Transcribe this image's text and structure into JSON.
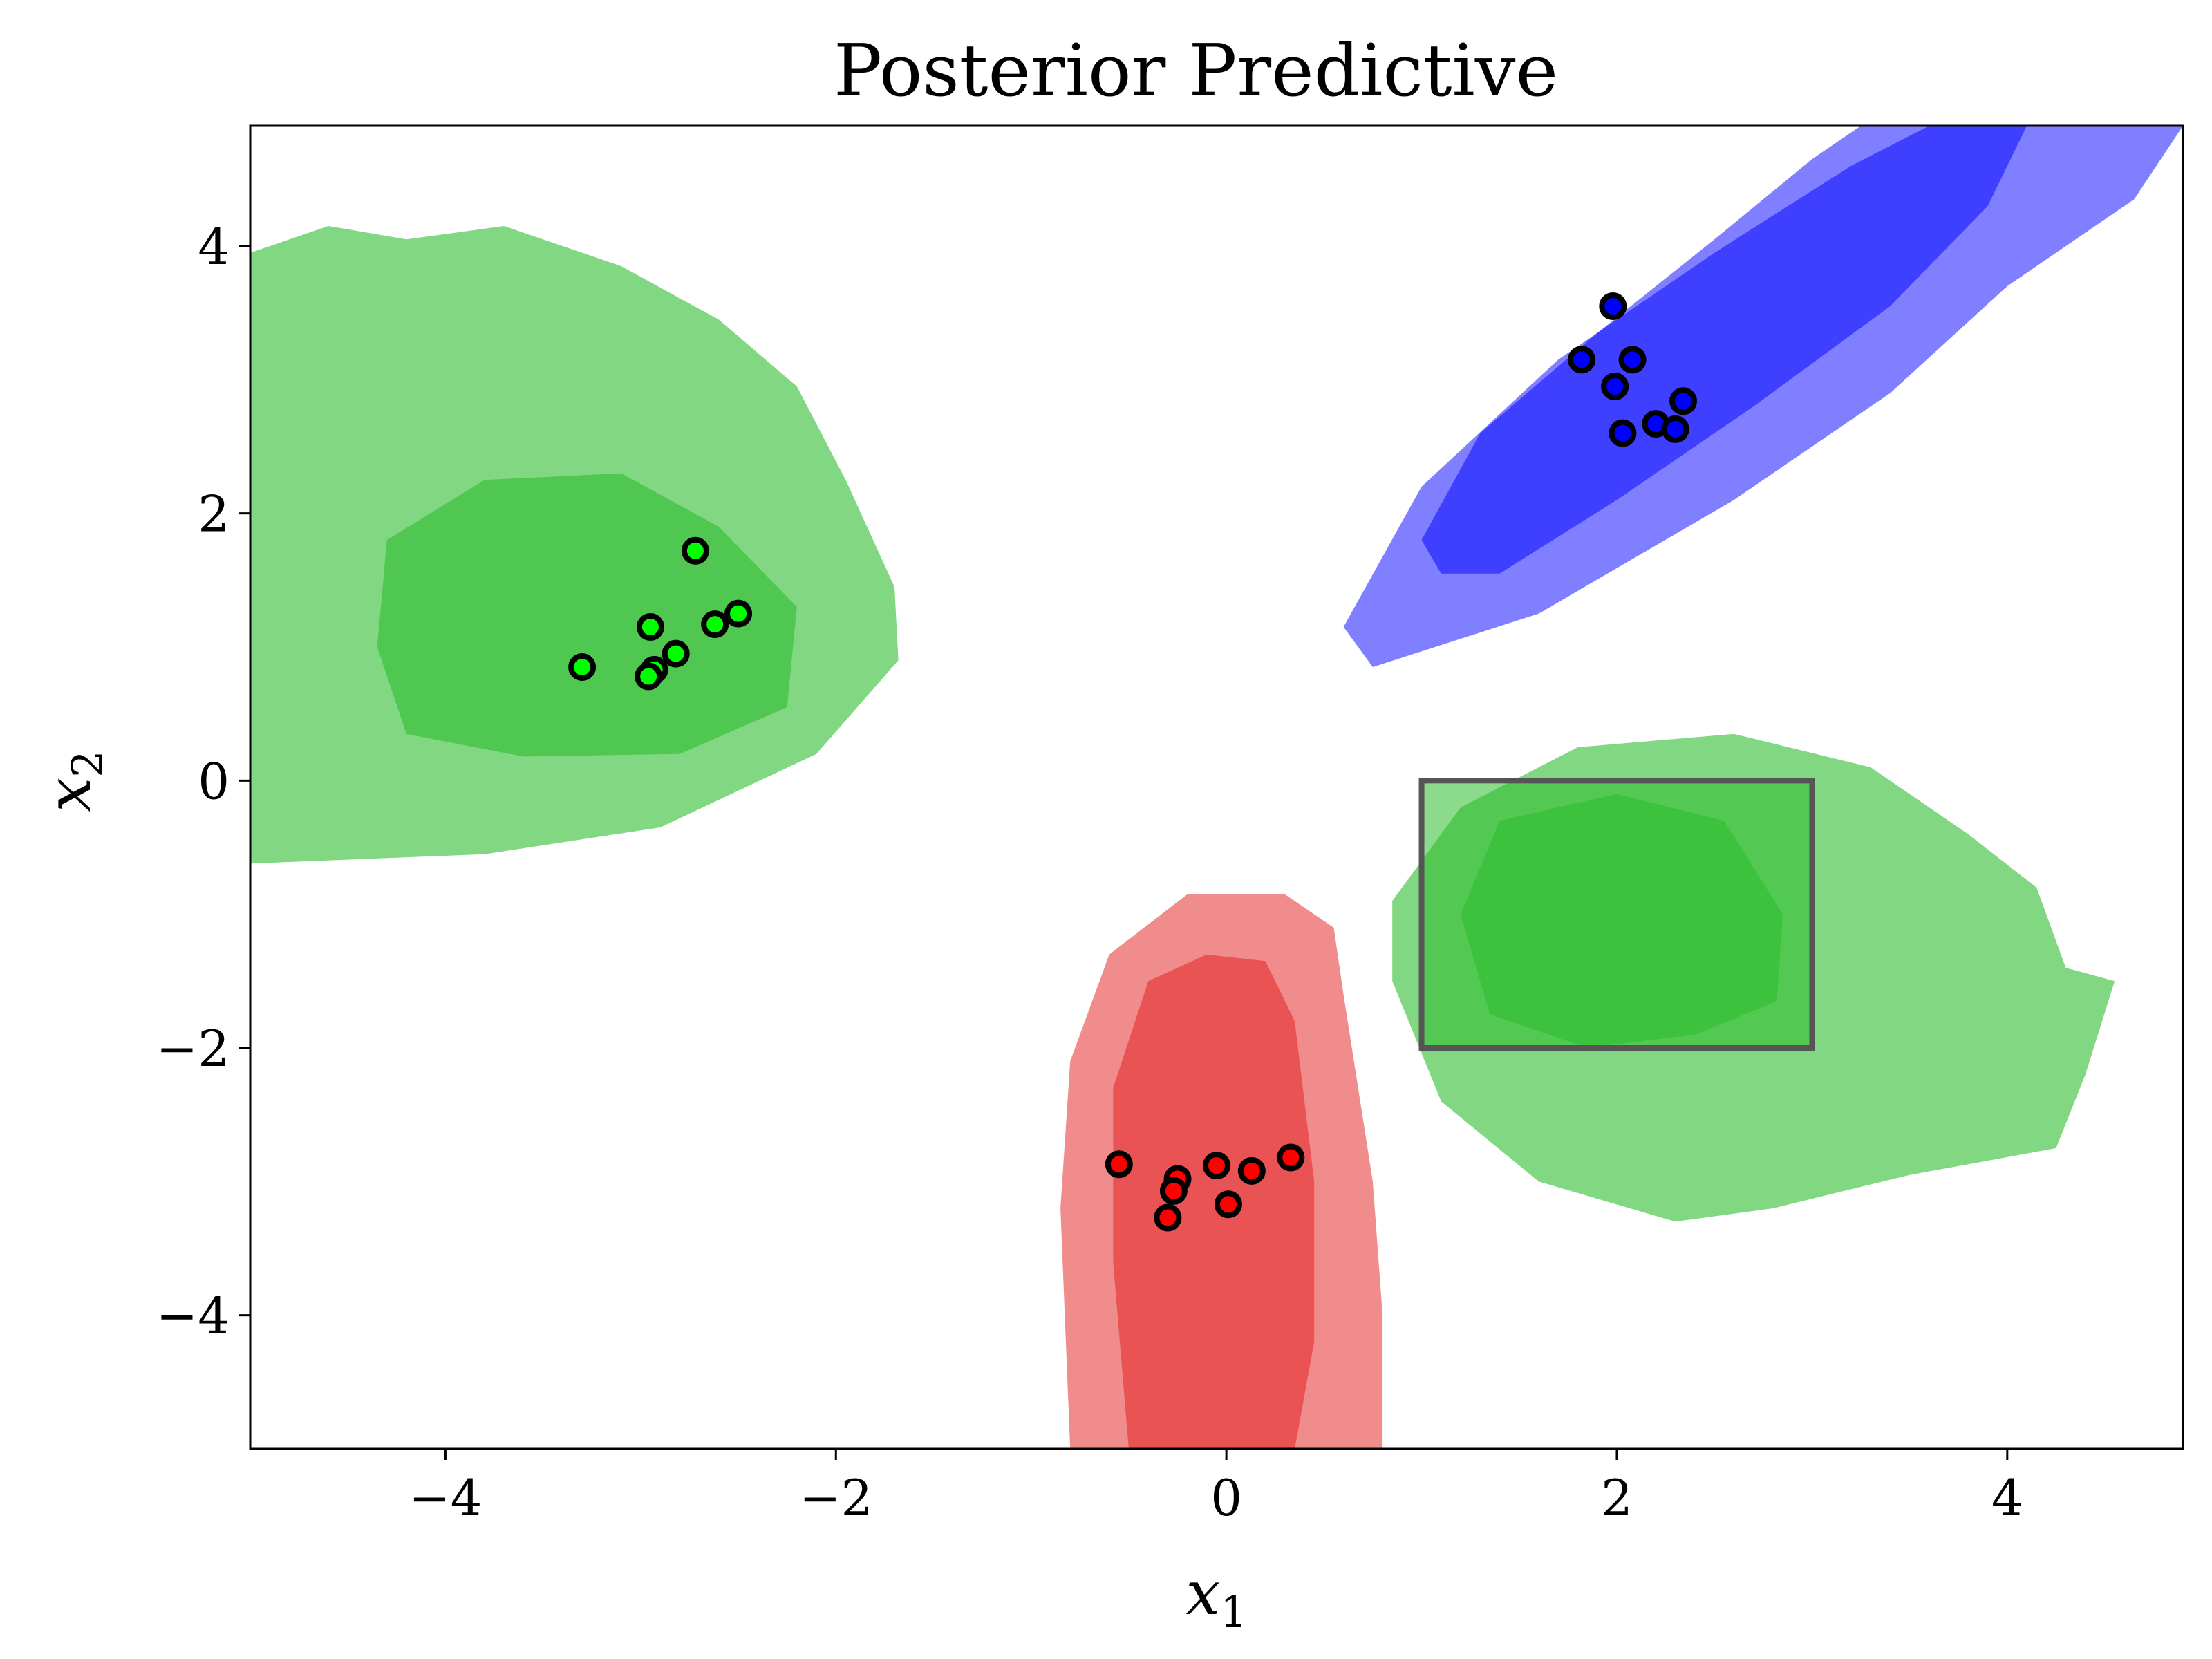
{
  "chart_data": {
    "type": "scatter",
    "title": "Posterior Predictive",
    "xlabel": "x1",
    "ylabel": "x2",
    "xlim": [
      -5,
      4.9
    ],
    "ylim": [
      -5,
      4.9
    ],
    "xticks": [
      -4,
      -2,
      0,
      2,
      4
    ],
    "yticks": [
      -4,
      -2,
      0,
      2,
      4
    ],
    "xtick_labels": [
      "−4",
      "−2",
      "0",
      "2",
      "4"
    ],
    "ytick_labels": [
      "−4",
      "−2",
      "0",
      "2",
      "4"
    ],
    "grid": false,
    "series": [
      {
        "color": "#00ff00",
        "points": [
          [
            -3.3,
            0.85
          ],
          [
            -2.95,
            1.15
          ],
          [
            -2.72,
            1.72
          ],
          [
            -2.93,
            0.83
          ],
          [
            -2.96,
            0.78
          ],
          [
            -2.82,
            0.95
          ],
          [
            -2.62,
            1.17
          ],
          [
            -2.5,
            1.25
          ]
        ]
      },
      {
        "color": "#0000ff",
        "points": [
          [
            1.98,
            3.55
          ],
          [
            1.82,
            3.15
          ],
          [
            2.08,
            3.15
          ],
          [
            1.99,
            2.95
          ],
          [
            2.03,
            2.6
          ],
          [
            2.2,
            2.67
          ],
          [
            2.34,
            2.84
          ],
          [
            2.3,
            2.63
          ]
        ]
      },
      {
        "color": "#ff0000",
        "points": [
          [
            -0.55,
            -2.87
          ],
          [
            -0.25,
            -2.98
          ],
          [
            -0.05,
            -2.88
          ],
          [
            0.13,
            -2.92
          ],
          [
            0.33,
            -2.82
          ],
          [
            -0.27,
            -3.07
          ],
          [
            0.01,
            -3.17
          ],
          [
            -0.3,
            -3.27
          ]
        ]
      }
    ],
    "contours": [
      {
        "color": "#2ebd2e",
        "opacity": 0.6,
        "outer": [
          [
            -5,
            3.95
          ],
          [
            -4.6,
            4.15
          ],
          [
            -4.2,
            4.05
          ],
          [
            -3.7,
            4.15
          ],
          [
            -3.1,
            3.85
          ],
          [
            -2.6,
            3.45
          ],
          [
            -2.2,
            2.95
          ],
          [
            -1.95,
            2.25
          ],
          [
            -1.7,
            1.45
          ],
          [
            -1.68,
            0.9
          ],
          [
            -2.1,
            0.2
          ],
          [
            -2.9,
            -0.35
          ],
          [
            -3.8,
            -0.55
          ],
          [
            -5,
            -0.62
          ]
        ],
        "inner": [
          [
            -4.3,
            1.8
          ],
          [
            -3.8,
            2.25
          ],
          [
            -3.1,
            2.3
          ],
          [
            -2.6,
            1.9
          ],
          [
            -2.2,
            1.3
          ],
          [
            -2.25,
            0.55
          ],
          [
            -2.8,
            0.2
          ],
          [
            -3.6,
            0.18
          ],
          [
            -4.2,
            0.35
          ],
          [
            -4.35,
            1.0
          ]
        ]
      },
      {
        "color": "#2ebd2e",
        "opacity": 0.6,
        "outer": [
          [
            1.2,
            -0.2
          ],
          [
            1.8,
            0.25
          ],
          [
            2.6,
            0.35
          ],
          [
            3.3,
            0.1
          ],
          [
            3.8,
            -0.4
          ],
          [
            4.15,
            -0.8
          ],
          [
            4.3,
            -1.4
          ],
          [
            4.55,
            -1.5
          ],
          [
            4.4,
            -2.2
          ],
          [
            4.25,
            -2.75
          ],
          [
            3.5,
            -2.95
          ],
          [
            2.8,
            -3.2
          ],
          [
            2.3,
            -3.3
          ],
          [
            1.6,
            -3.0
          ],
          [
            1.1,
            -2.4
          ],
          [
            0.85,
            -1.5
          ],
          [
            0.85,
            -0.9
          ]
        ],
        "inner": [
          [
            1.2,
            -1.0
          ],
          [
            1.4,
            -0.3
          ],
          [
            2.0,
            -0.1
          ],
          [
            2.55,
            -0.3
          ],
          [
            2.85,
            -1.0
          ],
          [
            2.82,
            -1.65
          ],
          [
            2.4,
            -1.9
          ],
          [
            1.85,
            -2.0
          ],
          [
            1.35,
            -1.75
          ]
        ]
      },
      {
        "color": "#0000ff",
        "opacity": 0.5,
        "outer": [
          [
            0.6,
            1.15
          ],
          [
            1.0,
            2.2
          ],
          [
            1.7,
            3.15
          ],
          [
            2.5,
            3.95
          ],
          [
            3.2,
            4.6
          ],
          [
            3.6,
            4.9
          ],
          [
            4.9,
            4.9
          ],
          [
            4.65,
            4.35
          ],
          [
            4.0,
            3.7
          ],
          [
            3.4,
            2.9
          ],
          [
            2.6,
            2.1
          ],
          [
            1.6,
            1.25
          ],
          [
            0.75,
            0.85
          ]
        ],
        "inner": [
          [
            1.0,
            1.8
          ],
          [
            1.3,
            2.6
          ],
          [
            1.9,
            3.35
          ],
          [
            2.5,
            4.05
          ],
          [
            3.0,
            4.65
          ],
          [
            3.25,
            4.9
          ],
          [
            4.1,
            4.9
          ],
          [
            3.9,
            4.3
          ],
          [
            3.4,
            3.55
          ],
          [
            2.7,
            2.8
          ],
          [
            2.0,
            2.1
          ],
          [
            1.4,
            1.55
          ],
          [
            1.1,
            1.55
          ]
        ]
      },
      {
        "color": "#e31a1c",
        "opacity": 0.5,
        "outer": [
          [
            -0.8,
            -5.0
          ],
          [
            -0.85,
            -3.2
          ],
          [
            -0.8,
            -2.1
          ],
          [
            -0.6,
            -1.3
          ],
          [
            -0.2,
            -0.85
          ],
          [
            0.3,
            -0.85
          ],
          [
            0.55,
            -1.1
          ],
          [
            0.6,
            -1.6
          ],
          [
            0.75,
            -3.0
          ],
          [
            0.8,
            -4.0
          ],
          [
            0.8,
            -5.0
          ]
        ],
        "inner": [
          [
            -0.5,
            -5.0
          ],
          [
            -0.58,
            -3.6
          ],
          [
            -0.58,
            -2.3
          ],
          [
            -0.4,
            -1.5
          ],
          [
            -0.1,
            -1.3
          ],
          [
            0.2,
            -1.35
          ],
          [
            0.35,
            -1.8
          ],
          [
            0.45,
            -3.0
          ],
          [
            0.45,
            -4.2
          ],
          [
            0.35,
            -5.0
          ]
        ]
      }
    ],
    "highlight_region": {
      "x": [
        1,
        3
      ],
      "y": [
        -2,
        0
      ],
      "fill": "#2ebd2e",
      "stroke": "#555555"
    }
  }
}
